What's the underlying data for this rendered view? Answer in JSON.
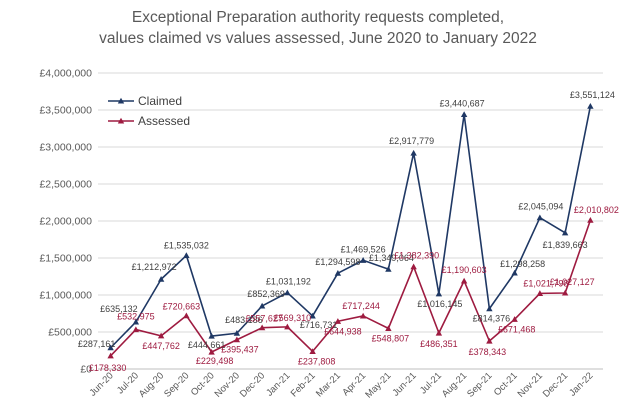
{
  "chart_data": {
    "type": "line",
    "title_lines": [
      "Exceptional Preparation authority requests completed,",
      "values claimed vs values assessed, June 2020 to January 2022"
    ],
    "xlabel": "",
    "ylabel": "",
    "categories": [
      "Jun-20",
      "Jul-20",
      "Aug-20",
      "Sep-20",
      "Oct-20",
      "Nov-20",
      "Dec-20",
      "Jan-21",
      "Feb-21",
      "Mar-21",
      "Apr-21",
      "May-21",
      "Jun-21",
      "Jul-21",
      "Aug-21",
      "Sep-21",
      "Oct-21",
      "Nov-21",
      "Dec-21",
      "Jan-22"
    ],
    "ylim": [
      0,
      4000000
    ],
    "yticks": [
      0,
      500000,
      1000000,
      1500000,
      2000000,
      2500000,
      3000000,
      3500000,
      4000000
    ],
    "ytick_labels": [
      "£0",
      "£500,000",
      "£1,000,000",
      "£1,500,000",
      "£2,000,000",
      "£2,500,000",
      "£3,000,000",
      "£3,500,000",
      "£4,000,000"
    ],
    "grid": true,
    "legend_position": "top-left",
    "series": [
      {
        "name": "Claimed",
        "color": "#1f3864",
        "marker": "triangle",
        "values": [
          287161,
          635132,
          1212972,
          1535032,
          444661,
          483186,
          852369,
          1031192,
          716731,
          1294598,
          1469526,
          1349064,
          2917779,
          1016145,
          3440687,
          814376,
          1298258,
          2045094,
          1839663,
          3551124
        ],
        "labels": [
          "£287,161",
          "£635,132",
          "£1,212,972",
          "£1,535,032",
          "£444,661",
          "£483,186",
          "£852,369",
          "£1,031,192",
          "£716,731",
          "£1,294,598",
          "£1,469,526",
          "£1,349,064",
          "£2,917,779",
          "£1,016,145",
          "£3,440,687",
          "£814,376",
          "£1,298,258",
          "£2,045,094",
          "£1,839,663",
          "£3,551,124"
        ]
      },
      {
        "name": "Assessed",
        "color": "#9e1b40",
        "marker": "triangle",
        "values": [
          178330,
          532975,
          447762,
          720663,
          229498,
          395437,
          557627,
          569310,
          237808,
          644938,
          717244,
          548807,
          1382390,
          486351,
          1190603,
          378343,
          671468,
          1021798,
          1027127,
          2010802
        ],
        "labels": [
          "£178,330",
          "£532,975",
          "£447,762",
          "£720,663",
          "£229,498",
          "£395,437",
          "£557,627",
          "£569,310",
          "£237,808",
          "£644,938",
          "£717,244",
          "£548,807",
          "£1,382,390",
          "£486,351",
          "£1,190,603",
          "£378,343",
          "£671,468",
          "£1,021,798",
          "£1,027,127",
          "£2,010,802"
        ]
      }
    ]
  }
}
